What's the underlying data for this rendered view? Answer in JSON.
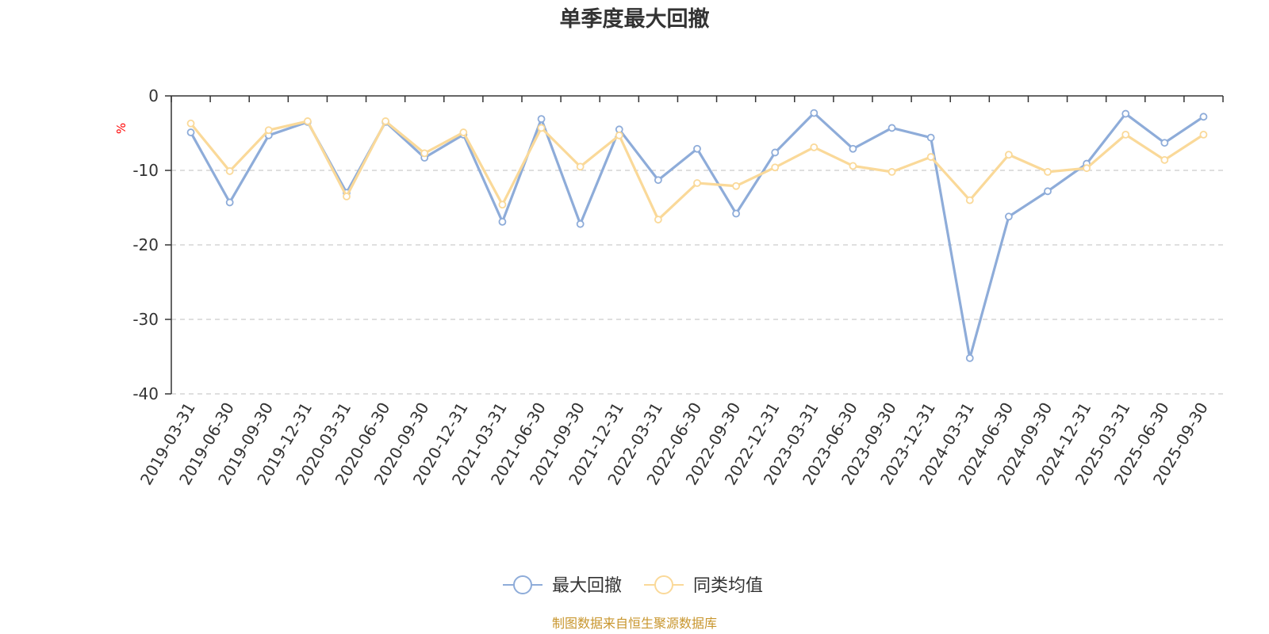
{
  "chart_data": {
    "type": "line",
    "title": "单季度最大回撤",
    "ylabel": "%",
    "xlabel": "",
    "ylim": [
      -40,
      0
    ],
    "yticks": [
      0,
      -10,
      -20,
      -30,
      -40
    ],
    "grid": true,
    "categories": [
      "2019-03-31",
      "2019-06-30",
      "2019-09-30",
      "2019-12-31",
      "2020-03-31",
      "2020-06-30",
      "2020-09-30",
      "2020-12-31",
      "2021-03-31",
      "2021-06-30",
      "2021-09-30",
      "2021-12-31",
      "2022-03-31",
      "2022-06-30",
      "2022-09-30",
      "2022-12-31",
      "2023-03-31",
      "2023-06-30",
      "2023-09-30",
      "2023-12-31",
      "2024-03-31",
      "2024-06-30",
      "2024-09-30",
      "2024-12-31",
      "2025-03-31",
      "2025-06-30",
      "2025-09-30"
    ],
    "series": [
      {
        "name": "最大回撤",
        "color": "#8eacd9",
        "values": [
          -4.9,
          -14.3,
          -5.3,
          -3.5,
          -13.0,
          -3.5,
          -8.3,
          -5.2,
          -16.9,
          -3.1,
          -17.2,
          -4.5,
          -11.3,
          -7.1,
          -15.8,
          -7.6,
          -2.3,
          -7.1,
          -4.3,
          -5.6,
          -35.2,
          -16.2,
          -12.8,
          -9.1,
          -2.4,
          -6.3,
          -2.8
        ]
      },
      {
        "name": "同类均值",
        "color": "#fad999",
        "values": [
          -3.7,
          -10.1,
          -4.6,
          -3.4,
          -13.5,
          -3.4,
          -7.7,
          -4.9,
          -14.6,
          -4.3,
          -9.5,
          -5.3,
          -16.6,
          -11.7,
          -12.1,
          -9.6,
          -6.9,
          -9.4,
          -10.2,
          -8.2,
          -14.0,
          -7.9,
          -10.2,
          -9.7,
          -5.2,
          -8.6,
          -5.2
        ]
      }
    ],
    "legend_position": "bottom-center",
    "source": "制图数据来自恒生聚源数据库",
    "colors": {
      "axis": "#333333",
      "grid": "#cccccc",
      "unit": "#ff0000",
      "source": "#c8962e",
      "text": "#333333"
    }
  }
}
